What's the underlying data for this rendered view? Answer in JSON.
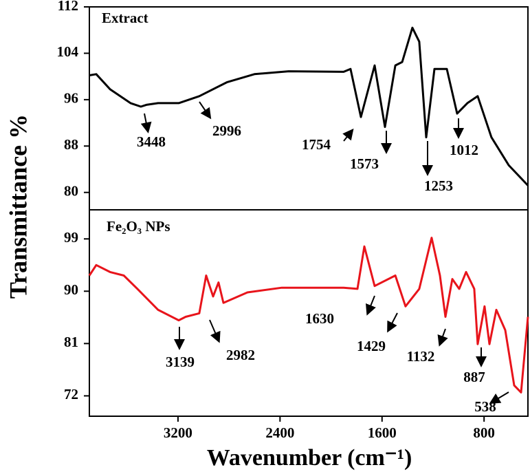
{
  "chart_data": [
    {
      "type": "line",
      "title": "Extract",
      "ylabel": "Transmittance %",
      "color": "#000000",
      "xlim": [
        3895,
        456
      ],
      "ylim": [
        77,
        112
      ],
      "yticks": [
        80,
        88,
        96,
        104,
        112
      ],
      "x": [
        3895,
        3841,
        3733,
        3572,
        3491,
        3448,
        3356,
        3194,
        3033,
        2817,
        2601,
        2332,
        1901,
        1847,
        1766,
        1658,
        1577,
        1496,
        1442,
        1362,
        1308,
        1254,
        1189,
        1092,
        1011,
        931,
        850,
        742,
        607,
        456
      ],
      "values": [
        100.2,
        100.4,
        97.8,
        95.4,
        94.8,
        95.1,
        95.4,
        95.4,
        96.6,
        99.0,
        100.4,
        100.9,
        100.8,
        101.3,
        93.0,
        101.9,
        91.3,
        101.9,
        102.5,
        108.4,
        106.0,
        89.5,
        101.3,
        101.3,
        93.6,
        95.4,
        96.6,
        89.5,
        84.7,
        81.2
      ],
      "annotations": [
        3448,
        2996,
        1754,
        1573,
        1253,
        1012
      ]
    },
    {
      "type": "line",
      "title": "Fe₂O₃ NPs",
      "xlabel": "Wavenumber (cm⁻¹)",
      "color": "#e8141b",
      "xlim": [
        3895,
        456
      ],
      "ylim": [
        68.5,
        104
      ],
      "yticks": [
        72,
        81,
        90,
        99
      ],
      "xticks": [
        3200,
        2400,
        1600,
        800
      ],
      "x": [
        3895,
        3841,
        3733,
        3625,
        3518,
        3356,
        3194,
        3140,
        3033,
        2979,
        2925,
        2882,
        2844,
        2655,
        2386,
        1901,
        1793,
        1739,
        1658,
        1496,
        1416,
        1308,
        1211,
        1146,
        1103,
        1049,
        995,
        941,
        877,
        850,
        796,
        758,
        704,
        634,
        564,
        510,
        456
      ],
      "values": [
        92.7,
        94.5,
        93.3,
        92.7,
        90.4,
        86.8,
        85.0,
        85.6,
        86.2,
        92.7,
        89.1,
        91.5,
        88.0,
        89.8,
        90.6,
        90.6,
        90.4,
        97.7,
        90.9,
        92.7,
        87.4,
        90.4,
        99.2,
        92.7,
        85.6,
        92.1,
        90.4,
        93.3,
        90.4,
        80.9,
        87.4,
        80.9,
        86.8,
        83.3,
        73.8,
        72.6,
        85.6
      ],
      "annotations": [
        3139,
        2982,
        1630,
        1429,
        1132,
        887,
        538
      ]
    }
  ]
}
